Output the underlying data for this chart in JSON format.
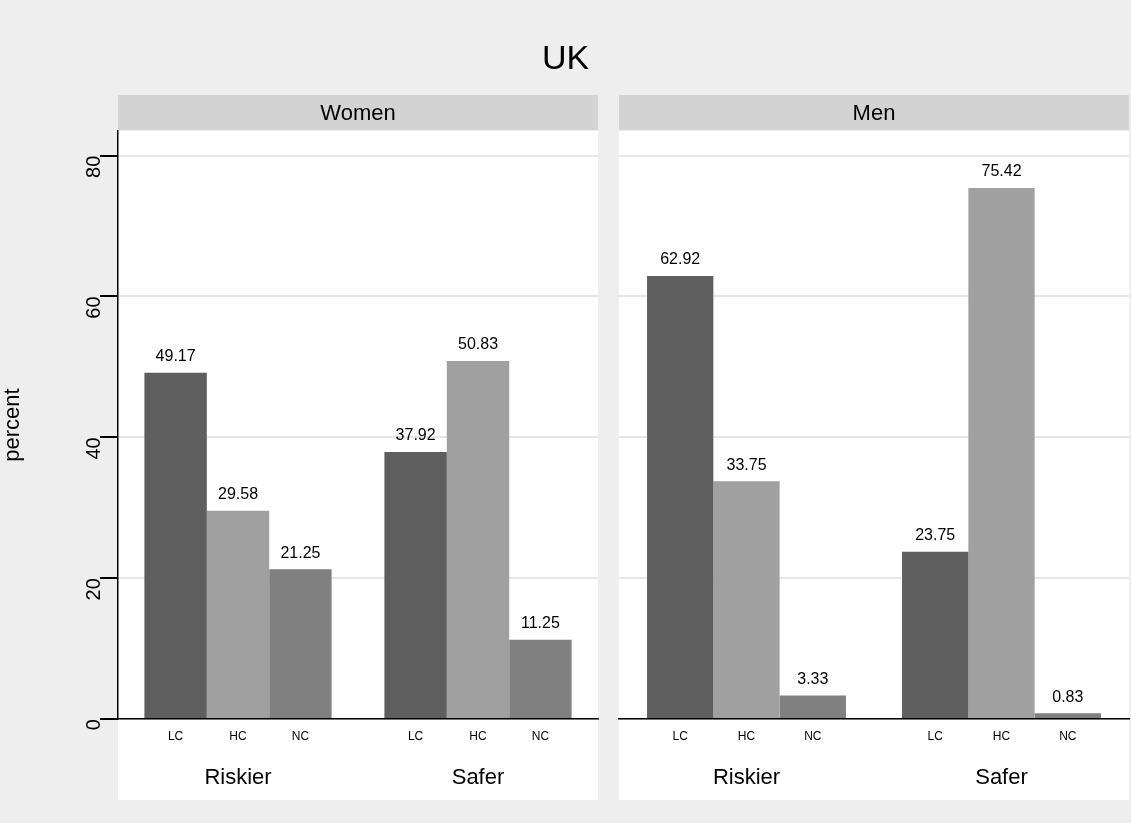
{
  "chart_data": [
    {
      "type": "bar",
      "title": "UK",
      "subtitle": "Women",
      "ylabel": "percent",
      "categories": [
        "Riskier",
        "Safer"
      ],
      "series": [
        {
          "name": "LC",
          "color": "#5e5e5e",
          "values": [
            49.17,
            37.92
          ]
        },
        {
          "name": "HC",
          "color": "#a0a0a0",
          "values": [
            29.58,
            50.83
          ]
        },
        {
          "name": "NC",
          "color": "#808080",
          "values": [
            21.25,
            11.25
          ]
        }
      ],
      "ylim": [
        0,
        83.5
      ],
      "yticks": [
        0,
        20,
        40,
        60,
        80
      ],
      "grid": "y",
      "legend": false,
      "data_labels": true
    },
    {
      "type": "bar",
      "subtitle": "Men",
      "categories": [
        "Riskier",
        "Safer"
      ],
      "series": [
        {
          "name": "LC",
          "color": "#5e5e5e",
          "values": [
            62.92,
            23.75
          ]
        },
        {
          "name": "HC",
          "color": "#a0a0a0",
          "values": [
            33.75,
            75.42
          ]
        },
        {
          "name": "NC",
          "color": "#808080",
          "values": [
            3.33,
            0.83
          ]
        }
      ],
      "ylim": [
        0,
        83.5
      ],
      "yticks": [
        0,
        20,
        40,
        60,
        80
      ],
      "grid": "y",
      "legend": false,
      "data_labels": true,
      "tick_labels": "x"
    }
  ]
}
